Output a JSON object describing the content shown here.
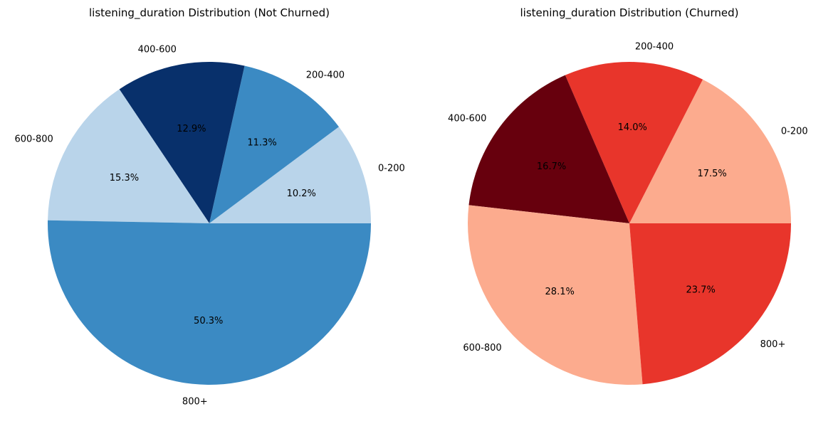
{
  "chart_data": [
    {
      "type": "pie",
      "title": "listening_duration Distribution (Not Churned)",
      "labels": [
        "0-200",
        "200-400",
        "400-600",
        "600-800",
        "800+"
      ],
      "values": [
        10.2,
        11.3,
        12.9,
        15.3,
        50.3
      ],
      "value_labels": [
        "10.2%",
        "11.3%",
        "12.9%",
        "15.3%",
        "50.3%"
      ],
      "colors": [
        "#b9d4ea",
        "#3b8ac3",
        "#08306b",
        "#b9d4ea",
        "#3b8ac3"
      ],
      "start_angle_deg": 0,
      "direction": "counterclockwise"
    },
    {
      "type": "pie",
      "title": "listening_duration Distribution (Churned)",
      "labels": [
        "0-200",
        "200-400",
        "400-600",
        "600-800",
        "800+"
      ],
      "values": [
        17.5,
        14.0,
        16.7,
        28.1,
        23.7
      ],
      "value_labels": [
        "17.5%",
        "14.0%",
        "16.7%",
        "28.1%",
        "23.7%"
      ],
      "colors": [
        "#fcab8e",
        "#e8352b",
        "#67000d",
        "#fcab8e",
        "#e8352b"
      ],
      "start_angle_deg": 0,
      "direction": "counterclockwise"
    }
  ]
}
